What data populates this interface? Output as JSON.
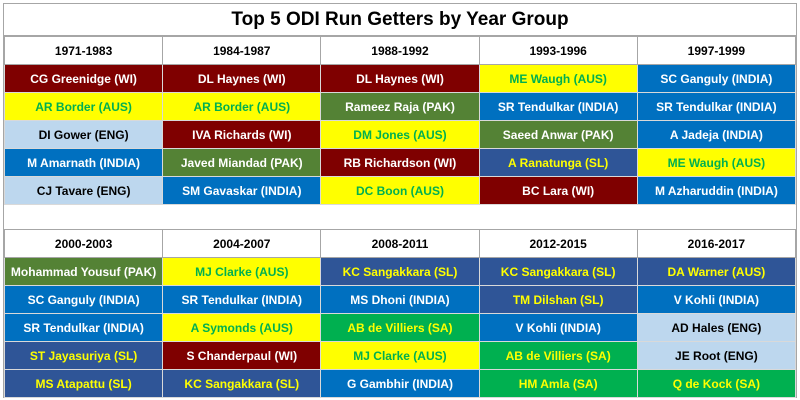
{
  "title": "Top 5 ODI Run Getters by Year Group",
  "tables": [
    {
      "headers": [
        "1971-1983",
        "1984-1987",
        "1988-1992",
        "1993-1996",
        "1997-1999"
      ],
      "rows": [
        [
          "CG Greenidge (WI)",
          "DL Haynes (WI)",
          "DL Haynes (WI)",
          "ME Waugh (AUS)",
          "SC Ganguly (INDIA)"
        ],
        [
          "AR Border (AUS)",
          "AR Border (AUS)",
          "Rameez Raja (PAK)",
          "SR Tendulkar (INDIA)",
          "SR Tendulkar (INDIA)"
        ],
        [
          "DI Gower (ENG)",
          "IVA Richards (WI)",
          "DM Jones (AUS)",
          "Saeed Anwar (PAK)",
          "A Jadeja (INDIA)"
        ],
        [
          "M Amarnath (INDIA)",
          "Javed Miandad (PAK)",
          "RB Richardson (WI)",
          "A Ranatunga (SL)",
          "ME Waugh (AUS)"
        ],
        [
          "CJ Tavare (ENG)",
          "SM Gavaskar (INDIA)",
          "DC Boon (AUS)",
          "BC Lara (WI)",
          "M Azharuddin (INDIA)"
        ]
      ]
    },
    {
      "headers": [
        "2000-2003",
        "2004-2007",
        "2008-2011",
        "2012-2015",
        "2016-2017"
      ],
      "rows": [
        [
          "Mohammad Yousuf (PAK)",
          "MJ Clarke (AUS)",
          "KC Sangakkara (SL)",
          "KC Sangakkara (SL)",
          "DA Warner (AUS)"
        ],
        [
          "SC Ganguly (INDIA)",
          "SR Tendulkar (INDIA)",
          "MS Dhoni (INDIA)",
          "TM Dilshan (SL)",
          "V Kohli (INDIA)"
        ],
        [
          "SR Tendulkar (INDIA)",
          "A Symonds (AUS)",
          "AB de Villiers (SA)",
          "V Kohli (INDIA)",
          "AD Hales (ENG)"
        ],
        [
          "ST Jayasuriya (SL)",
          "S Chanderpaul (WI)",
          "MJ Clarke (AUS)",
          "AB de Villiers (SA)",
          "JE Root (ENG)"
        ],
        [
          "MS Atapattu (SL)",
          "KC Sangakkara (SL)",
          "G Gambhir (INDIA)",
          "HM Amla (SA)",
          "Q de Kock (SA)"
        ]
      ]
    }
  ]
}
